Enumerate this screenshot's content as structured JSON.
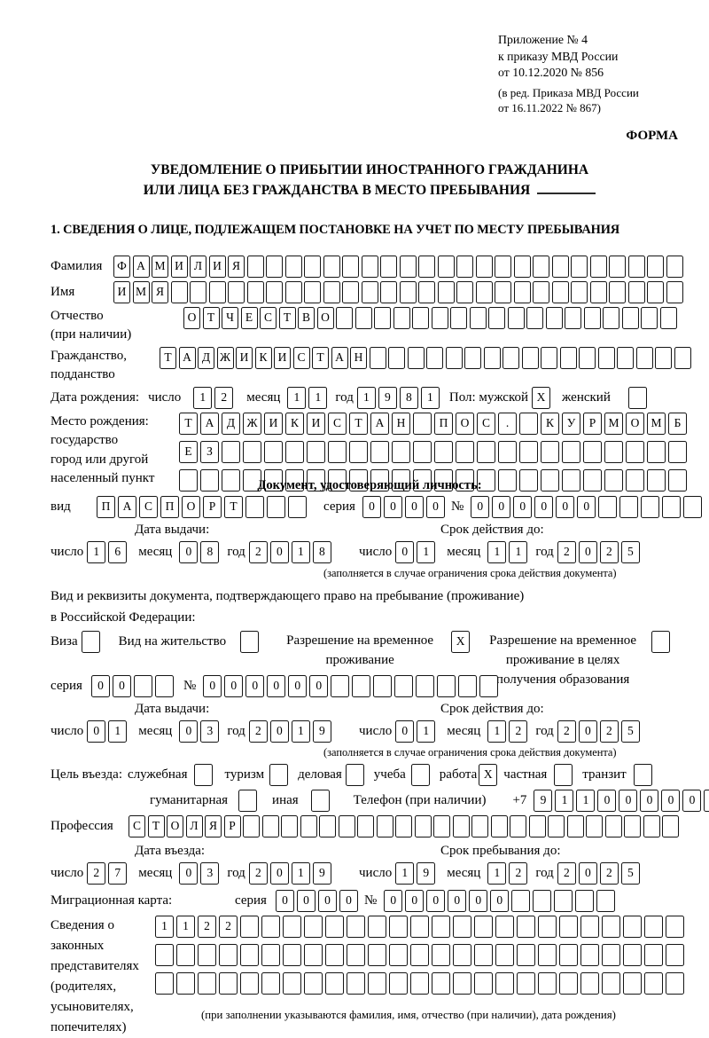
{
  "header": {
    "appendix_lines": [
      "Приложение № 4",
      "к приказу МВД России",
      "от 10.12.2020 № 856"
    ],
    "edition_lines": [
      "(в ред. Приказа МВД России",
      "от 16.11.2022 № 867)"
    ],
    "forma": "ФОРМА"
  },
  "title": {
    "line1": "УВЕДОМЛЕНИЕ О ПРИБЫТИИ ИНОСТРАННОГО ГРАЖДАНИНА",
    "line2": "ИЛИ ЛИЦА БЕЗ ГРАЖДАНСТВА В МЕСТО ПРЕБЫВАНИЯ"
  },
  "section1_heading": "1. СВЕДЕНИЯ О ЛИЦЕ, ПОДЛЕЖАЩЕМ ПОСТАНОВКЕ НА УЧЕТ ПО МЕСТУ ПРЕБЫВАНИЯ",
  "labels": {
    "day": "число",
    "month": "месяц",
    "year": "год",
    "seriya": "серия",
    "number": "№"
  },
  "surname": {
    "label": "Фамилия",
    "cells": {
      "count": 30,
      "value": "ФАМИЛИЯ"
    }
  },
  "firstname": {
    "label": "Имя",
    "cells": {
      "count": 30,
      "value": "ИМЯ"
    }
  },
  "patronymic": {
    "label": "Отчество",
    "label2": "(при наличии)",
    "cells": {
      "count": 26,
      "value": "ОТЧЕСТВО"
    }
  },
  "citizenship": {
    "label": "Гражданство,",
    "label2": "подданство",
    "cells": {
      "count": 28,
      "value": "ТАДЖИКИСТАН"
    }
  },
  "birth": {
    "label": "Дата рождения:",
    "day": {
      "count": 2,
      "value": "12"
    },
    "month": {
      "count": 2,
      "value": "11"
    },
    "year": {
      "count": 4,
      "value": "1981"
    },
    "sex_label": "Пол: мужской",
    "male": {
      "count": 1,
      "value": "X"
    },
    "female_label": "женский",
    "female": {
      "count": 1,
      "value": ""
    }
  },
  "birthplace": {
    "label_lines": [
      "Место рождения:",
      "государство",
      "город или другой",
      "населенный пункт"
    ],
    "rows": [
      {
        "count": 24,
        "value": "ТАДЖИКИСТАН ПОС. КУРМОМБ"
      },
      {
        "count": 24,
        "value": "ЕЗ"
      },
      {
        "count": 24,
        "value": ""
      }
    ]
  },
  "identity_doc": {
    "heading": "Документ, удостоверяющий личность:",
    "type_label": "вид",
    "type": {
      "count": 10,
      "value": "ПАСПОРТ"
    },
    "seriya": {
      "count": 4,
      "value": "0000"
    },
    "number": {
      "count": 11,
      "value": "000000"
    },
    "issue": {
      "heading": "Дата выдачи:",
      "day": {
        "count": 2,
        "value": "16"
      },
      "month": {
        "count": 2,
        "value": "08"
      },
      "year": {
        "count": 4,
        "value": "2018"
      }
    },
    "expiry": {
      "heading": "Срок действия до:",
      "day": {
        "count": 2,
        "value": "01"
      },
      "month": {
        "count": 2,
        "value": "11"
      },
      "year": {
        "count": 4,
        "value": "2025"
      },
      "note": "(заполняется в случае ограничения срока действия документа)"
    }
  },
  "residence_doc": {
    "line1": "Вид и реквизиты документа, подтверждающего право на пребывание (проживание)",
    "line2": "в Российской Федерации:",
    "options": [
      {
        "label_lines": [
          "Виза"
        ],
        "box": {
          "count": 1,
          "value": ""
        }
      },
      {
        "label_lines": [
          "Вид на жительство"
        ],
        "box": {
          "count": 1,
          "value": ""
        }
      },
      {
        "label_lines": [
          "Разрешение на временное",
          "проживание"
        ],
        "box": {
          "count": 1,
          "value": "X"
        }
      },
      {
        "label_lines": [
          "Разрешение на временное",
          "проживание в целях",
          "получения образования"
        ],
        "box": {
          "count": 1,
          "value": ""
        }
      }
    ],
    "seriya": {
      "count": 4,
      "value": "00"
    },
    "number": {
      "count": 14,
      "value": "000000"
    },
    "issue": {
      "heading": "Дата выдачи:",
      "day": {
        "count": 2,
        "value": "01"
      },
      "month": {
        "count": 2,
        "value": "03"
      },
      "year": {
        "count": 4,
        "value": "2019"
      }
    },
    "expiry": {
      "heading": "Срок действия до:",
      "day": {
        "count": 2,
        "value": "01"
      },
      "month": {
        "count": 2,
        "value": "12"
      },
      "year": {
        "count": 4,
        "value": "2025"
      },
      "note": "(заполняется в случае ограничения срока действия документа)"
    }
  },
  "purpose": {
    "label": "Цель въезда:",
    "options_line1": [
      {
        "label": "служебная",
        "box": {
          "count": 1,
          "value": ""
        }
      },
      {
        "label": "туризм",
        "box": {
          "count": 1,
          "value": ""
        }
      },
      {
        "label": "деловая",
        "box": {
          "count": 1,
          "value": ""
        }
      },
      {
        "label": "учеба",
        "box": {
          "count": 1,
          "value": ""
        }
      },
      {
        "label": "работа",
        "box": {
          "count": 1,
          "value": "X"
        }
      },
      {
        "label": "частная",
        "box": {
          "count": 1,
          "value": ""
        }
      },
      {
        "label": "транзит",
        "box": {
          "count": 1,
          "value": ""
        }
      }
    ],
    "options_line2": [
      {
        "label": "гуманитарная",
        "box": {
          "count": 1,
          "value": ""
        }
      },
      {
        "label": "иная",
        "box": {
          "count": 1,
          "value": ""
        }
      }
    ],
    "phone_label": "Телефон (при наличии)",
    "phone_prefix": "+7",
    "phone": {
      "count": 10,
      "value": "911000000"
    }
  },
  "profession": {
    "label": "Профессия",
    "cells": {
      "count": 29,
      "value": "СТОЛЯР"
    }
  },
  "entry": {
    "issue": {
      "heading": "Дата въезда:",
      "day": {
        "count": 2,
        "value": "27"
      },
      "month": {
        "count": 2,
        "value": "03"
      },
      "year": {
        "count": 4,
        "value": "2019"
      }
    },
    "stay": {
      "heading": "Срок пребывания до:",
      "day": {
        "count": 2,
        "value": "19"
      },
      "month": {
        "count": 2,
        "value": "12"
      },
      "year": {
        "count": 4,
        "value": "2025"
      }
    }
  },
  "migration_card": {
    "label": "Миграционная карта:",
    "seriya": {
      "count": 4,
      "value": "0000"
    },
    "number": {
      "count": 11,
      "value": "000000"
    }
  },
  "representatives": {
    "label_lines": [
      "Сведения о",
      "законных",
      "представителях",
      "(родителях,",
      "усыновителях,",
      "попечителях)"
    ],
    "rows": [
      {
        "count": 25,
        "value": "1122"
      },
      {
        "count": 25,
        "value": ""
      },
      {
        "count": 25,
        "value": ""
      }
    ],
    "note": "(при заполнении указываются фамилия, имя, отчество (при наличии), дата рождения)"
  }
}
